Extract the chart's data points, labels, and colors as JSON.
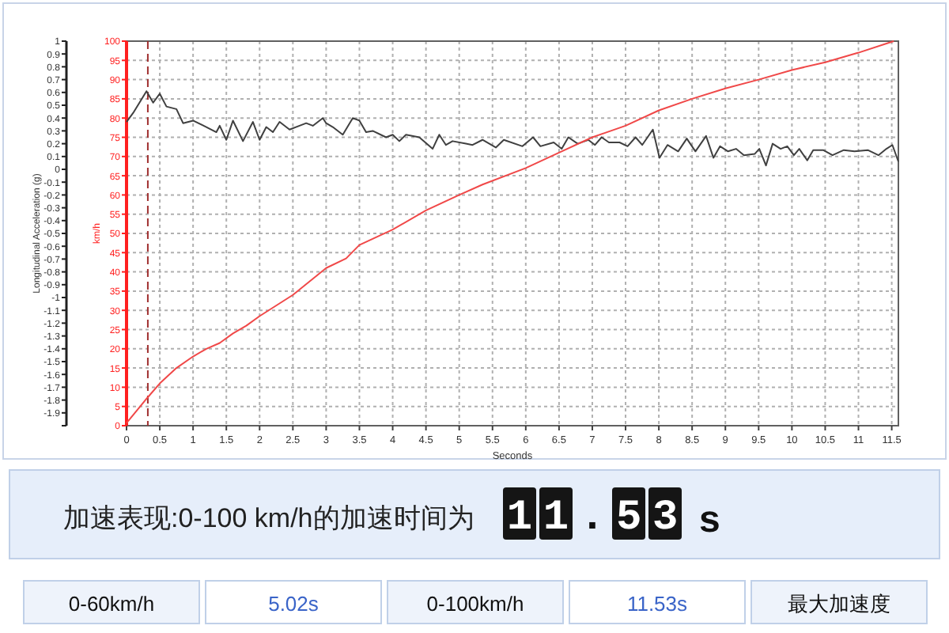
{
  "chart_data": {
    "type": "line",
    "xlabel": "Seconds",
    "ylabel": "Longitudinal Acceleration (g)",
    "y2label": "km/h",
    "xlim": [
      0,
      11.6
    ],
    "xticks": [
      0,
      0.5,
      1,
      1.5,
      2,
      2.5,
      3,
      3.5,
      4,
      4.5,
      5,
      5.5,
      6,
      6.5,
      7,
      7.5,
      8,
      8.5,
      9,
      9.5,
      10,
      10.5,
      11,
      11.5
    ],
    "ylim": [
      -2,
      1
    ],
    "yticks": [
      {
        "value": -2,
        "label": null
      },
      -1.9,
      -1.8,
      -1.7,
      -1.6,
      -1.5,
      -1.4,
      -1.3,
      -1.2,
      -1.1,
      -1,
      -0.9,
      -0.8,
      -0.7,
      -0.6,
      -0.5,
      -0.4,
      -0.3,
      -0.2,
      -0.1,
      0,
      0.1,
      0.2,
      0.3,
      0.4,
      0.5,
      0.6,
      0.7,
      0.8,
      0.9,
      1
    ],
    "y2lim": [
      0,
      100
    ],
    "y2ticks": [
      0,
      5,
      10,
      15,
      20,
      25,
      30,
      35,
      40,
      45,
      50,
      55,
      60,
      65,
      70,
      75,
      80,
      85,
      90,
      95,
      100
    ],
    "grid": true,
    "line_style": "solid",
    "marker": "none",
    "series": [
      {
        "color": "#404040",
        "axis": "y",
        "x": [
          0,
          0.1,
          0.3,
          0.4,
          0.5,
          0.6,
          0.75,
          0.85,
          1.0,
          1.2,
          1.35,
          1.4,
          1.5,
          1.6,
          1.75,
          1.9,
          2.0,
          2.1,
          2.2,
          2.3,
          2.45,
          2.6,
          2.7,
          2.8,
          2.95,
          3.0,
          3.1,
          3.25,
          3.4,
          3.5,
          3.6,
          3.7,
          3.9,
          4.0,
          4.1,
          4.2,
          4.4,
          4.6,
          4.7,
          4.8,
          4.9,
          5.1,
          5.2,
          5.35,
          5.55,
          5.67,
          5.95,
          6.11,
          6.22,
          6.42,
          6.54,
          6.64,
          6.78,
          6.94,
          7.04,
          7.14,
          7.25,
          7.41,
          7.53,
          7.65,
          7.75,
          7.91,
          8.01,
          8.13,
          8.29,
          8.42,
          8.55,
          8.71,
          8.82,
          8.92,
          9.04,
          9.16,
          9.28,
          9.44,
          9.51,
          9.61,
          9.71,
          9.83,
          9.93,
          10.03,
          10.11,
          10.23,
          10.32,
          10.47,
          10.61,
          10.78,
          10.94,
          11.14,
          11.3,
          11.42,
          11.51,
          11.6
        ],
        "values": [
          0.37,
          0.44,
          0.61,
          0.52,
          0.59,
          0.49,
          0.47,
          0.36,
          0.38,
          0.33,
          0.29,
          0.34,
          0.23,
          0.38,
          0.22,
          0.37,
          0.23,
          0.33,
          0.29,
          0.37,
          0.31,
          0.34,
          0.36,
          0.34,
          0.4,
          0.36,
          0.33,
          0.27,
          0.4,
          0.38,
          0.29,
          0.3,
          0.25,
          0.27,
          0.22,
          0.27,
          0.25,
          0.16,
          0.27,
          0.19,
          0.22,
          0.2,
          0.19,
          0.23,
          0.17,
          0.23,
          0.18,
          0.25,
          0.18,
          0.21,
          0.16,
          0.25,
          0.2,
          0.23,
          0.19,
          0.25,
          0.21,
          0.21,
          0.18,
          0.25,
          0.19,
          0.31,
          0.09,
          0.19,
          0.14,
          0.24,
          0.14,
          0.26,
          0.09,
          0.18,
          0.14,
          0.16,
          0.11,
          0.12,
          0.16,
          0.03,
          0.2,
          0.16,
          0.18,
          0.11,
          0.16,
          0.07,
          0.15,
          0.15,
          0.11,
          0.15,
          0.14,
          0.15,
          0.11,
          0.16,
          0.19,
          0.06
        ]
      },
      {
        "color": "#f04848",
        "axis": "y2",
        "x": [
          0,
          0.3,
          0.5,
          0.75,
          1.0,
          1.2,
          1.4,
          1.6,
          1.8,
          2.0,
          2.5,
          3.0,
          3.3,
          3.5,
          4.0,
          4.5,
          5.0,
          5.35,
          6.0,
          6.5,
          7.0,
          7.5,
          8.0,
          8.5,
          9.0,
          9.5,
          10.0,
          10.5,
          11.0,
          11.53
        ],
        "values": [
          0.7,
          7,
          11,
          15,
          18,
          20,
          21.5,
          24,
          26,
          28.5,
          34,
          41,
          43.5,
          47,
          51,
          56,
          60,
          62.7,
          67,
          71,
          75,
          78,
          82,
          85,
          87.7,
          90,
          92.5,
          94.5,
          97,
          100
        ]
      }
    ],
    "ref_lines": [
      {
        "axis": "x",
        "value": 0.32,
        "color": "#a03030",
        "line_style": "dashed"
      }
    ],
    "annotations": [
      "加速表现:0-100 km/h的加速时间为",
      "11.53",
      "s",
      "0-60km/h",
      "5.02s",
      "0-100km/h",
      "11.53s",
      "最大加速度"
    ]
  }
}
